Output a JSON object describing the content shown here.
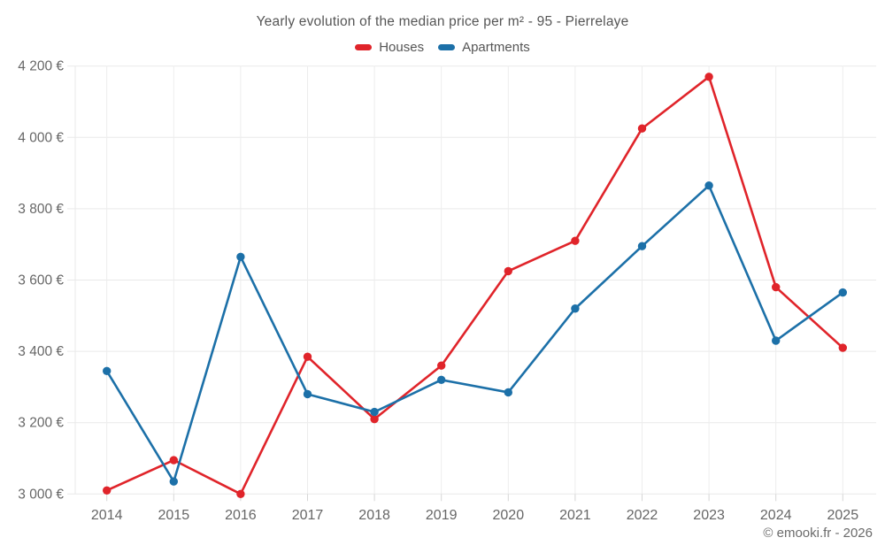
{
  "title": "Yearly evolution of the median price per m² - 95 - Pierrelaye",
  "footer_credit": "© emooki.fr - 2026",
  "chart_data": {
    "type": "line",
    "title": "Yearly evolution of the median price per m² - 95 - Pierrelaye",
    "categories": [
      "2014",
      "2015",
      "2016",
      "2017",
      "2018",
      "2019",
      "2020",
      "2021",
      "2022",
      "2023",
      "2024",
      "2025"
    ],
    "series": [
      {
        "name": "Houses",
        "color": "#e0242a",
        "values": [
          3010,
          3095,
          3000,
          3385,
          3210,
          3360,
          3625,
          3710,
          4025,
          4170,
          3580,
          3410
        ]
      },
      {
        "name": "Apartments",
        "color": "#1c70a8",
        "values": [
          3345,
          3035,
          3665,
          3280,
          3230,
          3320,
          3285,
          3520,
          3695,
          3865,
          3430,
          3565
        ]
      }
    ],
    "xlabel": "",
    "ylabel": "",
    "ylim": [
      3000,
      4200
    ],
    "y_ticks": [
      3000,
      3200,
      3400,
      3600,
      3800,
      4000,
      4200
    ],
    "y_tick_labels": [
      "3 000 €",
      "3 200 €",
      "3 400 €",
      "3 600 €",
      "3 800 €",
      "4 000 €",
      "4 200 €"
    ],
    "grid": true,
    "legend_position": "top",
    "currency_suffix": "€"
  },
  "colors": {
    "houses": "#e0242a",
    "apartments": "#1c70a8",
    "grid": "#e9e9e9",
    "axis_text": "#666666",
    "title_text": "#555555"
  }
}
